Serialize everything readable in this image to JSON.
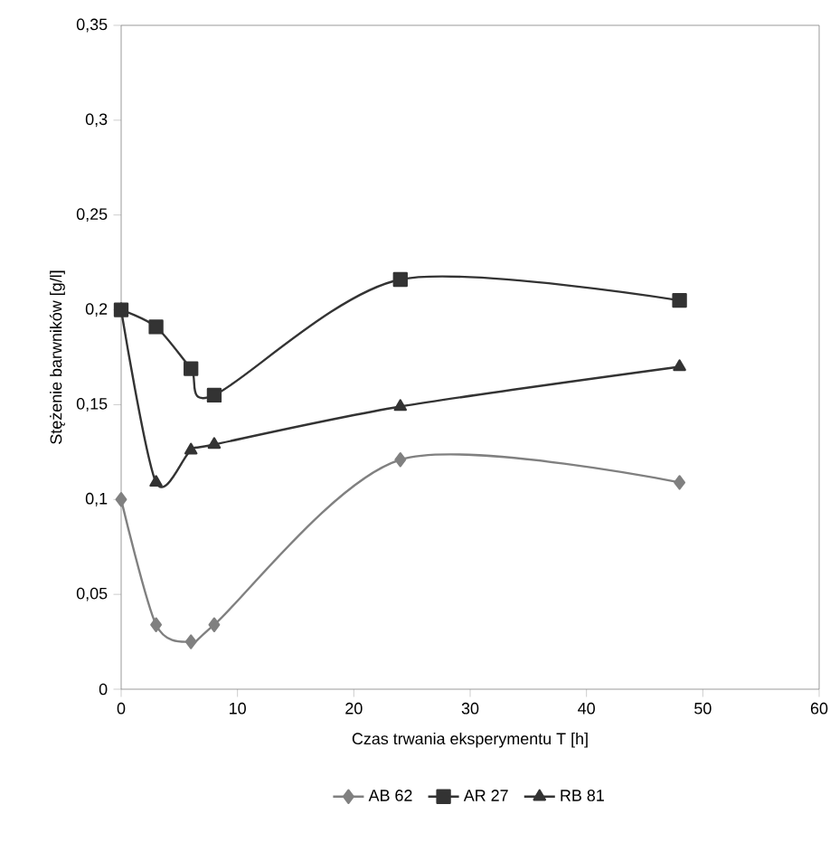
{
  "chart_data": {
    "type": "line",
    "xlabel": "Czas trwania eksperymentu T [h]",
    "ylabel": "Stężenie barwników [g/l]",
    "xlim": [
      0,
      60
    ],
    "ylim": [
      0,
      0.35
    ],
    "xticks": [
      0,
      10,
      20,
      30,
      40,
      50,
      60
    ],
    "yticks": [
      {
        "value": 0,
        "label": "0"
      },
      {
        "value": 0.05,
        "label": "0,05"
      },
      {
        "value": 0.1,
        "label": "0,1"
      },
      {
        "value": 0.15,
        "label": "0,15"
      },
      {
        "value": 0.2,
        "label": "0,2"
      },
      {
        "value": 0.25,
        "label": "0,25"
      },
      {
        "value": 0.3,
        "label": "0,3"
      },
      {
        "value": 0.35,
        "label": "0,35"
      }
    ],
    "x": [
      0,
      3,
      6,
      8,
      24,
      48
    ],
    "legend": "bottom",
    "grid": false,
    "series": [
      {
        "name": "AB 62",
        "color": "#808080",
        "marker": "diamond",
        "values": [
          0.1,
          0.034,
          0.025,
          0.034,
          0.121,
          0.109
        ]
      },
      {
        "name": "AR 27",
        "color": "#333333",
        "marker": "square",
        "values": [
          0.2,
          0.191,
          0.169,
          0.155,
          0.216,
          0.205
        ]
      },
      {
        "name": "RB 81",
        "color": "#333333",
        "marker": "triangle",
        "values": [
          0.2,
          0.109,
          0.126,
          0.129,
          0.149,
          0.17
        ]
      }
    ]
  }
}
